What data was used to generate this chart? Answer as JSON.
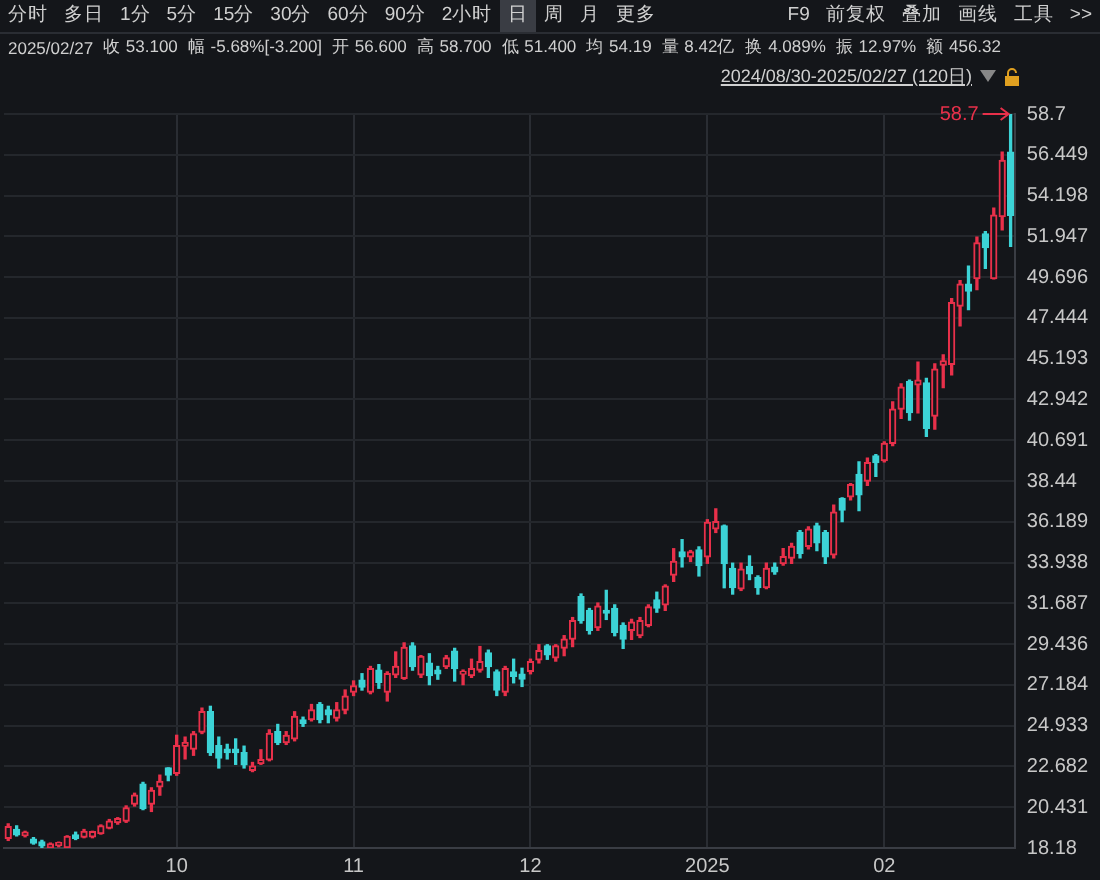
{
  "chart_data": {
    "type": "candlestick",
    "annotations": [
      "分时",
      "多日",
      "1分",
      "5分",
      "15分",
      "30分",
      "60分",
      "90分",
      "2小时",
      "日",
      "周",
      "月",
      "更多",
      "F9",
      "前复权",
      "叠加",
      "画线",
      "工具",
      ">>",
      "2025/02/27",
      "收 53.100",
      "幅 -5.68%[-3.200]",
      "开 56.600",
      "高 58.700",
      "低 51.400",
      "均 54.19",
      "量 8.42亿",
      "换 4.089%",
      "振 12.97%",
      "额 456.32",
      "2024/08/30-2025/02/27 (120日)",
      "58.7"
    ],
    "categories": [
      null,
      null,
      null,
      null,
      null,
      null,
      null,
      null,
      null,
      null,
      null,
      null,
      null,
      null,
      null,
      null,
      null,
      null,
      null,
      null,
      "10",
      null,
      null,
      null,
      null,
      null,
      null,
      null,
      null,
      null,
      null,
      null,
      null,
      null,
      null,
      null,
      null,
      null,
      null,
      null,
      null,
      "11",
      null,
      null,
      null,
      null,
      null,
      null,
      null,
      null,
      null,
      null,
      null,
      null,
      null,
      null,
      null,
      null,
      null,
      null,
      null,
      null,
      "12",
      null,
      null,
      null,
      null,
      null,
      null,
      null,
      null,
      null,
      null,
      null,
      null,
      null,
      null,
      null,
      null,
      null,
      null,
      null,
      null,
      "2025",
      null,
      null,
      null,
      null,
      null,
      null,
      null,
      null,
      null,
      null,
      null,
      null,
      null,
      null,
      null,
      null,
      null,
      null,
      null,
      null,
      "02",
      null,
      null,
      null,
      null,
      null,
      null,
      null,
      null,
      null,
      null,
      null,
      null,
      null,
      null,
      null
    ],
    "ohlc": [
      [
        18.71,
        19.51,
        18.6,
        19.36
      ],
      [
        19.2,
        19.4,
        18.85,
        18.9
      ],
      [
        18.86,
        19.1,
        18.8,
        19.05
      ],
      [
        18.67,
        18.75,
        18.4,
        18.45
      ],
      [
        18.52,
        18.6,
        18.2,
        18.3
      ],
      [
        18.2,
        18.45,
        18.18,
        18.4
      ],
      [
        18.33,
        18.5,
        18.25,
        18.48
      ],
      [
        18.2,
        18.85,
        18.18,
        18.82
      ],
      [
        18.9,
        19.05,
        18.65,
        18.72
      ],
      [
        18.78,
        19.2,
        18.75,
        19.09
      ],
      [
        18.8,
        19.1,
        18.75,
        19.08
      ],
      [
        18.98,
        19.45,
        18.95,
        19.4
      ],
      [
        19.28,
        19.75,
        19.25,
        19.66
      ],
      [
        19.58,
        19.85,
        19.5,
        19.8
      ],
      [
        19.66,
        20.5,
        19.6,
        20.4
      ],
      [
        20.6,
        21.2,
        20.5,
        21.1
      ],
      [
        21.7,
        21.8,
        20.3,
        20.35
      ],
      [
        20.6,
        21.5,
        20.2,
        21.36
      ],
      [
        21.55,
        22.2,
        21.1,
        21.86
      ],
      [
        22.6,
        22.6,
        21.9,
        22.2
      ],
      [
        22.3,
        24.4,
        22.2,
        23.83
      ],
      [
        23.8,
        24.3,
        23.1,
        24.0
      ],
      [
        23.64,
        24.6,
        23.3,
        24.48
      ],
      [
        24.58,
        25.9,
        24.5,
        25.7
      ],
      [
        25.7,
        26.0,
        23.3,
        23.45
      ],
      [
        23.83,
        24.3,
        22.6,
        23.15
      ],
      [
        23.64,
        23.9,
        23.1,
        23.45
      ],
      [
        23.64,
        24.2,
        22.8,
        23.45
      ],
      [
        23.45,
        23.8,
        22.6,
        22.77
      ],
      [
        22.47,
        22.9,
        22.4,
        22.7
      ],
      [
        22.85,
        23.6,
        22.8,
        23.05
      ],
      [
        23.05,
        24.7,
        23.0,
        24.5
      ],
      [
        24.6,
        25.0,
        23.9,
        24.0
      ],
      [
        24.0,
        24.6,
        23.9,
        24.4
      ],
      [
        24.2,
        25.7,
        24.1,
        25.45
      ],
      [
        25.25,
        25.4,
        24.9,
        25.05
      ],
      [
        25.27,
        26.1,
        25.2,
        25.8
      ],
      [
        26.1,
        26.2,
        25.1,
        25.27
      ],
      [
        25.8,
        26.0,
        25.1,
        25.53
      ],
      [
        25.35,
        26.2,
        25.2,
        25.8
      ],
      [
        25.8,
        26.9,
        25.6,
        26.56
      ],
      [
        26.79,
        27.4,
        26.6,
        27.13
      ],
      [
        27.45,
        27.8,
        26.9,
        27.06
      ],
      [
        26.79,
        28.2,
        26.7,
        28.08
      ],
      [
        28.0,
        28.3,
        27.0,
        27.32
      ],
      [
        26.79,
        27.9,
        26.3,
        27.81
      ],
      [
        27.74,
        29.0,
        27.6,
        28.2
      ],
      [
        27.55,
        29.5,
        27.5,
        29.25
      ],
      [
        29.33,
        29.5,
        28.0,
        28.2
      ],
      [
        27.74,
        28.8,
        27.6,
        28.76
      ],
      [
        28.38,
        28.9,
        27.2,
        27.7
      ],
      [
        28.0,
        28.2,
        27.5,
        27.8
      ],
      [
        28.19,
        28.8,
        28.1,
        28.68
      ],
      [
        29.05,
        29.2,
        27.4,
        28.08
      ],
      [
        27.78,
        28.0,
        27.2,
        27.93
      ],
      [
        27.7,
        28.6,
        27.6,
        28.08
      ],
      [
        28.0,
        29.3,
        27.9,
        28.46
      ],
      [
        28.95,
        29.1,
        27.6,
        28.2
      ],
      [
        27.9,
        28.0,
        26.6,
        26.9
      ],
      [
        26.79,
        28.2,
        26.6,
        28.08
      ],
      [
        27.9,
        28.6,
        27.3,
        27.66
      ],
      [
        27.78,
        28.1,
        27.1,
        27.51
      ],
      [
        27.93,
        28.6,
        27.8,
        28.46
      ],
      [
        28.57,
        29.4,
        28.4,
        29.07
      ],
      [
        29.33,
        29.4,
        28.6,
        28.84
      ],
      [
        28.68,
        29.4,
        28.5,
        29.33
      ],
      [
        29.21,
        29.9,
        28.8,
        29.71
      ],
      [
        29.71,
        30.9,
        29.3,
        30.73
      ],
      [
        32.06,
        32.2,
        30.6,
        30.73
      ],
      [
        31.3,
        31.4,
        30.0,
        30.2
      ],
      [
        30.35,
        31.7,
        30.2,
        31.53
      ],
      [
        31.3,
        32.4,
        30.8,
        31.15
      ],
      [
        31.4,
        31.6,
        29.9,
        30.09
      ],
      [
        30.47,
        30.6,
        29.2,
        29.71
      ],
      [
        30.2,
        30.8,
        29.7,
        30.65
      ],
      [
        29.9,
        30.9,
        29.8,
        30.73
      ],
      [
        30.47,
        31.6,
        30.4,
        31.49
      ],
      [
        31.87,
        32.3,
        31.2,
        31.42
      ],
      [
        31.6,
        32.7,
        31.3,
        32.63
      ],
      [
        33.24,
        34.7,
        32.9,
        34.0
      ],
      [
        34.53,
        35.2,
        33.7,
        34.26
      ],
      [
        34.26,
        34.6,
        34.0,
        34.53
      ],
      [
        34.64,
        34.8,
        33.2,
        33.77
      ],
      [
        34.26,
        36.3,
        33.9,
        36.16
      ],
      [
        35.8,
        36.9,
        35.6,
        36.2
      ],
      [
        35.96,
        36.0,
        32.55,
        33.88
      ],
      [
        33.61,
        33.9,
        32.2,
        32.55
      ],
      [
        32.48,
        33.9,
        32.4,
        33.58
      ],
      [
        33.73,
        34.3,
        33.0,
        33.31
      ],
      [
        33.12,
        33.2,
        32.2,
        32.55
      ],
      [
        32.55,
        33.9,
        32.5,
        33.61
      ],
      [
        33.69,
        33.9,
        33.3,
        33.42
      ],
      [
        33.88,
        34.7,
        33.8,
        34.26
      ],
      [
        34.18,
        35.0,
        33.9,
        34.83
      ],
      [
        35.6,
        35.7,
        34.2,
        34.45
      ],
      [
        34.83,
        35.9,
        34.7,
        35.78
      ],
      [
        35.96,
        36.1,
        34.6,
        35.02
      ],
      [
        35.59,
        35.7,
        33.9,
        34.26
      ],
      [
        34.37,
        37.1,
        34.2,
        36.72
      ],
      [
        37.48,
        37.5,
        36.2,
        36.84
      ],
      [
        37.56,
        38.3,
        37.4,
        38.24
      ],
      [
        38.81,
        39.5,
        36.8,
        37.67
      ],
      [
        38.43,
        39.7,
        38.2,
        39.45
      ],
      [
        39.83,
        39.9,
        38.7,
        39.45
      ],
      [
        39.56,
        40.6,
        39.5,
        40.52
      ],
      [
        40.52,
        42.8,
        40.4,
        42.41
      ],
      [
        42.41,
        43.8,
        41.9,
        43.62
      ],
      [
        43.93,
        44.0,
        41.8,
        42.22
      ],
      [
        43.75,
        45.0,
        42.2,
        44.0
      ],
      [
        43.85,
        44.1,
        40.9,
        41.35
      ],
      [
        42.03,
        44.9,
        41.3,
        44.61
      ],
      [
        44.84,
        45.4,
        43.6,
        45.07
      ],
      [
        44.88,
        48.5,
        44.3,
        48.29
      ],
      [
        48.1,
        49.5,
        47.0,
        49.31
      ],
      [
        49.31,
        50.3,
        47.9,
        48.93
      ],
      [
        49.62,
        51.9,
        49.0,
        51.59
      ],
      [
        52.08,
        52.2,
        50.18,
        51.32
      ],
      [
        49.62,
        53.5,
        49.6,
        53.11
      ],
      [
        53.03,
        56.6,
        52.3,
        56.14
      ],
      [
        56.6,
        58.7,
        51.4,
        53.1
      ]
    ],
    "ylim": [
      18.18,
      58.7
    ],
    "yticks": [
      18.18,
      20.431,
      22.682,
      24.933,
      27.184,
      29.436,
      31.687,
      33.938,
      36.189,
      38.44,
      40.691,
      42.942,
      45.193,
      47.444,
      49.696,
      51.947,
      54.198,
      56.449,
      58.7
    ],
    "grid": true
  }
}
